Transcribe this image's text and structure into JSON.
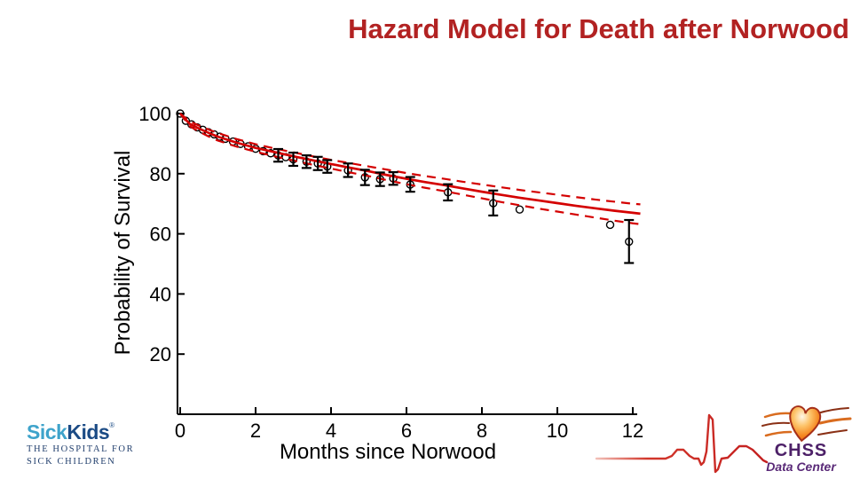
{
  "title": {
    "text": "Hazard Model for Death after Norwood",
    "color": "#b22222"
  },
  "chart_data": {
    "type": "line",
    "title": "",
    "xlabel": "Months since Norwood",
    "ylabel": "Probability of Survival",
    "xlim": [
      0,
      12.4
    ],
    "ylim": [
      0,
      102
    ],
    "xticks": [
      0,
      2,
      4,
      6,
      8,
      10,
      12
    ],
    "yticks": [
      20,
      40,
      60,
      80,
      100
    ],
    "grid": false,
    "legend": "none",
    "curve_color": "#d40000",
    "point_color": "#000000",
    "series": [
      {
        "name": "Parametric hazard model estimate",
        "style": "solid",
        "points": [
          [
            0,
            100
          ],
          [
            0.25,
            96.6
          ],
          [
            0.5,
            95.0
          ],
          [
            0.75,
            93.6
          ],
          [
            1,
            92.3
          ],
          [
            1.5,
            90.3
          ],
          [
            2,
            88.6
          ],
          [
            2.5,
            87.2
          ],
          [
            3,
            85.8
          ],
          [
            3.5,
            84.5
          ],
          [
            4,
            83.2
          ],
          [
            4.5,
            82.0
          ],
          [
            5,
            80.8
          ],
          [
            5.5,
            79.5
          ],
          [
            6,
            78.3
          ],
          [
            6.5,
            77.2
          ],
          [
            7,
            76.2
          ],
          [
            7.5,
            75.1
          ],
          [
            8,
            74.0
          ],
          [
            8.5,
            73.0
          ],
          [
            9,
            72.0
          ],
          [
            9.5,
            71.1
          ],
          [
            10,
            70.2
          ],
          [
            10.5,
            69.3
          ],
          [
            11,
            68.5
          ],
          [
            11.5,
            67.7
          ],
          [
            12,
            67.0
          ],
          [
            12.2,
            66.7
          ]
        ]
      },
      {
        "name": "Upper confidence limit",
        "style": "dashed",
        "points": [
          [
            0,
            100
          ],
          [
            0.25,
            97.4
          ],
          [
            0.5,
            96.0
          ],
          [
            0.75,
            94.7
          ],
          [
            1,
            93.5
          ],
          [
            1.5,
            91.5
          ],
          [
            2,
            89.8
          ],
          [
            2.5,
            88.4
          ],
          [
            3,
            87.1
          ],
          [
            3.5,
            85.8
          ],
          [
            4,
            84.6
          ],
          [
            4.5,
            83.5
          ],
          [
            5,
            82.4
          ],
          [
            5.5,
            81.3
          ],
          [
            6,
            80.2
          ],
          [
            6.5,
            79.2
          ],
          [
            7,
            78.3
          ],
          [
            7.5,
            77.3
          ],
          [
            8,
            76.4
          ],
          [
            8.5,
            75.5
          ],
          [
            9,
            74.6
          ],
          [
            9.5,
            73.8
          ],
          [
            10,
            73.0
          ],
          [
            10.5,
            72.2
          ],
          [
            11,
            71.4
          ],
          [
            11.5,
            70.7
          ],
          [
            12,
            70.0
          ],
          [
            12.2,
            69.8
          ]
        ]
      },
      {
        "name": "Lower confidence limit",
        "style": "dashed",
        "points": [
          [
            0,
            100
          ],
          [
            0.25,
            95.8
          ],
          [
            0.5,
            94.0
          ],
          [
            0.75,
            92.4
          ],
          [
            1,
            91.0
          ],
          [
            1.5,
            89.0
          ],
          [
            2,
            87.3
          ],
          [
            2.5,
            85.8
          ],
          [
            3,
            84.4
          ],
          [
            3.5,
            83.0
          ],
          [
            4,
            81.7
          ],
          [
            4.5,
            80.4
          ],
          [
            5,
            79.2
          ],
          [
            5.5,
            77.8
          ],
          [
            6,
            76.5
          ],
          [
            6.5,
            75.3
          ],
          [
            7,
            74.2
          ],
          [
            7.5,
            73.0
          ],
          [
            8,
            71.8
          ],
          [
            8.5,
            70.6
          ],
          [
            9,
            69.5
          ],
          [
            9.5,
            68.4
          ],
          [
            10,
            67.4
          ],
          [
            10.5,
            66.4
          ],
          [
            11,
            65.4
          ],
          [
            11.5,
            64.4
          ],
          [
            12,
            63.5
          ],
          [
            12.2,
            63.2
          ]
        ]
      }
    ],
    "km_points": [
      {
        "x": 0,
        "y": 100
      },
      {
        "x": 0.15,
        "y": 97.6
      },
      {
        "x": 0.3,
        "y": 96.4
      },
      {
        "x": 0.45,
        "y": 95.4
      },
      {
        "x": 0.6,
        "y": 94.6
      },
      {
        "x": 0.75,
        "y": 93.8
      },
      {
        "x": 0.9,
        "y": 93.1
      },
      {
        "x": 1.05,
        "y": 92.3
      },
      {
        "x": 1.2,
        "y": 91.6
      },
      {
        "x": 1.4,
        "y": 90.7
      },
      {
        "x": 1.6,
        "y": 89.9
      },
      {
        "x": 1.8,
        "y": 89.1
      },
      {
        "x": 2.0,
        "y": 88.3
      },
      {
        "x": 2.2,
        "y": 87.5
      },
      {
        "x": 2.4,
        "y": 86.8
      },
      {
        "x": 2.6,
        "y": 86.1,
        "lo": 84.0,
        "hi": 88.2
      },
      {
        "x": 2.8,
        "y": 85.5
      },
      {
        "x": 3.0,
        "y": 84.8,
        "lo": 82.6,
        "hi": 87.0
      },
      {
        "x": 3.35,
        "y": 84.0,
        "lo": 81.9,
        "hi": 86.1
      },
      {
        "x": 3.65,
        "y": 83.4,
        "lo": 81.2,
        "hi": 85.6
      },
      {
        "x": 3.9,
        "y": 82.4,
        "lo": 80.3,
        "hi": 84.5
      },
      {
        "x": 4.45,
        "y": 81.1,
        "lo": 78.9,
        "hi": 83.4
      },
      {
        "x": 4.9,
        "y": 78.8,
        "lo": 76.2,
        "hi": 81.3
      },
      {
        "x": 5.3,
        "y": 78.2,
        "lo": 75.9,
        "hi": 80.4
      },
      {
        "x": 5.65,
        "y": 78.4,
        "lo": 76.3,
        "hi": 80.5
      },
      {
        "x": 6.1,
        "y": 76.4,
        "lo": 74.0,
        "hi": 78.9
      },
      {
        "x": 7.1,
        "y": 73.8,
        "lo": 71.1,
        "hi": 76.5
      },
      {
        "x": 8.3,
        "y": 70.2,
        "lo": 66.1,
        "hi": 74.4
      },
      {
        "x": 9.0,
        "y": 68.1
      },
      {
        "x": 11.4,
        "y": 63.0
      },
      {
        "x": 11.9,
        "y": 57.4,
        "lo": 50.3,
        "hi": 64.6
      }
    ]
  },
  "logos": {
    "sickkids": {
      "name_part1": "Sick",
      "name_part2": "Kids",
      "registered": "®",
      "tagline_line1": "THE HOSPITAL FOR",
      "tagline_line2": "SICK CHILDREN",
      "teal": "#3ea3cb",
      "navy": "#1b4b85"
    },
    "chss": {
      "line1": "CHSS",
      "line2": "Data Center",
      "purple": "#4d2168",
      "heart_orange": "#f5861f",
      "heart_outline": "#a63019"
    },
    "ekg_color": "#c42020"
  }
}
